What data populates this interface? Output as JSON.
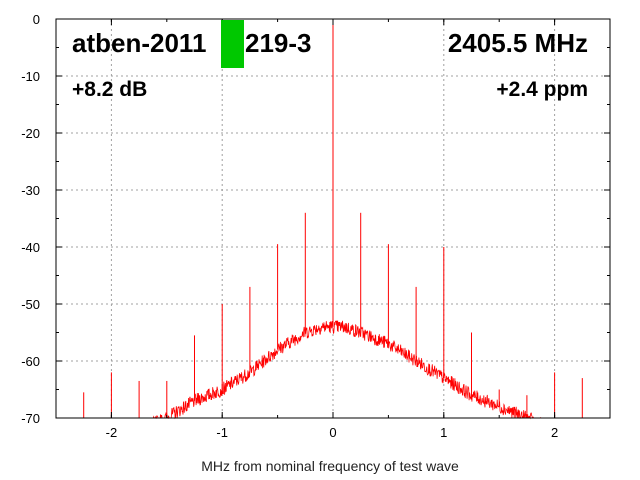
{
  "chart_data": {
    "type": "line",
    "title": "",
    "xlabel": "MHz from nominal frequency of test wave",
    "ylabel": "",
    "xlim": [
      -2.5,
      2.5
    ],
    "ylim": [
      -70,
      0
    ],
    "grid": true,
    "x_ticks": [
      -2,
      -1,
      0,
      1,
      2
    ],
    "y_ticks": [
      0,
      -10,
      -20,
      -30,
      -40,
      -50,
      -60,
      -70
    ],
    "series_color": "#ff0000",
    "annotations": {
      "device": "atben-2011",
      "device_suffix": "219-3",
      "frequency": "2405.5 MHz",
      "gain": "+8.2 dB",
      "offset": "+2.4 ppm"
    },
    "marker_color": "#00c800",
    "noise_floor": {
      "x": [
        -2.5,
        -2.0,
        -1.75,
        -1.5,
        -1.25,
        -1.0,
        -0.75,
        -0.5,
        -0.25,
        -0.1,
        0.0,
        0.1,
        0.25,
        0.5,
        0.75,
        1.0,
        1.25,
        1.5,
        1.75,
        2.0,
        2.5
      ],
      "y": [
        -72,
        -72,
        -72,
        -70,
        -67,
        -65,
        -62,
        -58,
        -55,
        -54,
        -54,
        -54,
        -55,
        -57,
        -60,
        -63,
        -66,
        -68,
        -70,
        -72,
        -72
      ]
    },
    "spurs": {
      "x": [
        -2.25,
        -2.0,
        -1.75,
        -1.5,
        -1.25,
        -1.0,
        -0.75,
        -0.5,
        -0.25,
        0.0,
        0.25,
        0.5,
        0.75,
        1.0,
        1.25,
        1.5,
        1.75,
        2.0,
        2.25
      ],
      "y": [
        -65.5,
        -62,
        -63.5,
        -63.5,
        -55.5,
        -50,
        -47,
        -39.5,
        -34,
        0,
        -34,
        -39.5,
        -47,
        -40,
        -55,
        -65,
        -66,
        -62,
        -63
      ]
    }
  }
}
